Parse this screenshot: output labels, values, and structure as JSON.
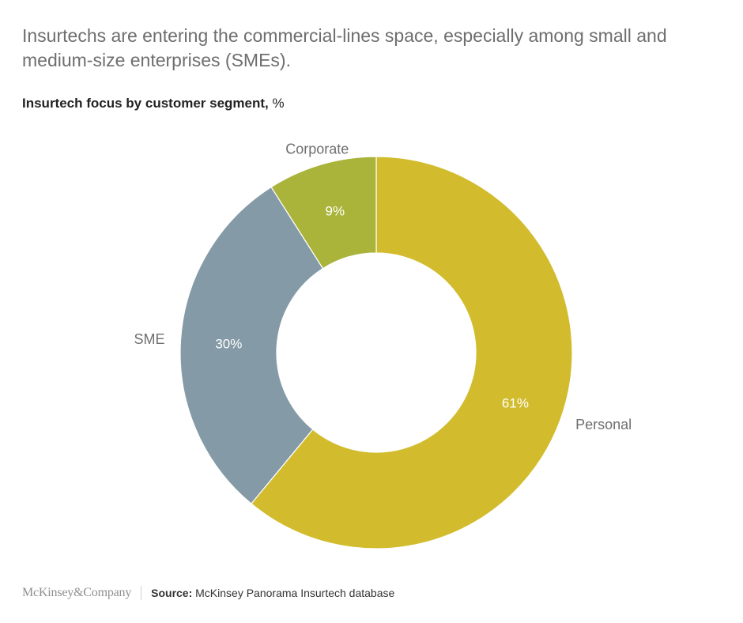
{
  "headline": "Insurtechs are entering the commercial-lines space, especially among small and medium-size enterprises (SMEs).",
  "subtitle": {
    "main": "Insurtech focus by customer segment,",
    "unit": " %"
  },
  "footer": {
    "logo": "McKinsey&Company",
    "source_label": "Source:",
    "source_text": " McKinsey Panorama Insurtech database"
  },
  "chart_data": {
    "type": "pie",
    "donut": true,
    "title": "Insurtech focus by customer segment, %",
    "categories": [
      "Personal",
      "SME",
      "Corporate"
    ],
    "values": [
      61,
      30,
      9
    ],
    "data_labels": [
      "61%",
      "30%",
      "9%"
    ],
    "colors": [
      "#d2bc2d",
      "#849aa6",
      "#aab43a"
    ]
  }
}
